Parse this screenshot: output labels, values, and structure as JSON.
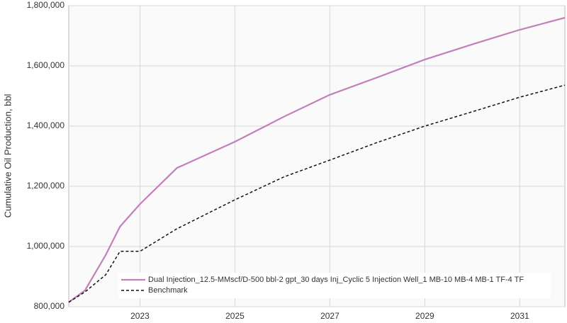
{
  "chart_data": {
    "type": "line",
    "y_label": "Cumulative Oil Production, bbl",
    "x": [
      2021.5,
      2021.84,
      2022.28,
      2022.58,
      2023,
      2023.78,
      2025,
      2026.03,
      2027,
      2027.97,
      2029,
      2029.99,
      2031,
      2031.95
    ],
    "series": [
      {
        "name": "Dual Injection_12.5-MMscf/D-500 bbl-2 gpt_30 days Inj_Cyclic 5 Injection Well_1 MB-10 MB-4 MB-1 TF-4 TF",
        "color": "#c27fba",
        "line_style": "solid",
        "values": [
          815000,
          854000,
          972000,
          1066000,
          1141000,
          1261000,
          1348000,
          1431000,
          1504000,
          1560000,
          1621000,
          1671000,
          1720000,
          1760000
        ]
      },
      {
        "name": "Benchmark",
        "color": "#111111",
        "line_style": "dashed",
        "values": [
          815000,
          849000,
          906000,
          984000,
          984000,
          1059000,
          1155000,
          1231000,
          1287000,
          1344000,
          1400000,
          1447000,
          1496000,
          1536000
        ]
      }
    ],
    "xlim": [
      2021.5,
      2031.95
    ],
    "xticks": [
      2023,
      2025,
      2027,
      2029,
      2031
    ],
    "ylim": [
      800000,
      1800000
    ],
    "yticks": [
      {
        "value": 800000,
        "label": "800,000"
      },
      {
        "value": 1000000,
        "label": "1,000,000"
      },
      {
        "value": 1200000,
        "label": "1,200,000"
      },
      {
        "value": 1400000,
        "label": "1,400,000"
      },
      {
        "value": 1600000,
        "label": "1,600,000"
      },
      {
        "value": 1800000,
        "label": "1,800,000"
      }
    ],
    "grid": true,
    "legend": "lower left"
  }
}
